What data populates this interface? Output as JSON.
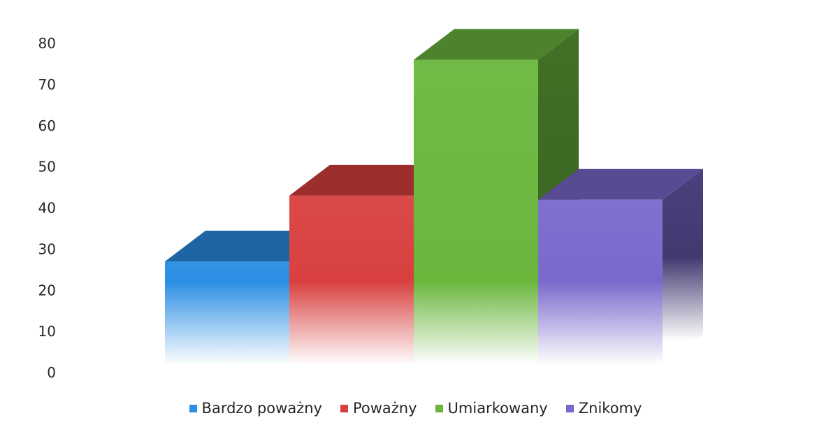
{
  "chart_data": {
    "type": "bar",
    "categories": [
      "Bardzo poważny",
      "Poważny",
      "Umiarkowany",
      "Znikomy"
    ],
    "values": [
      27,
      43,
      76,
      42
    ],
    "colors": [
      "#2a8ee3",
      "#d8403f",
      "#6ab63d",
      "#7a68cc"
    ],
    "title": "",
    "xlabel": "",
    "ylabel": "",
    "ylim": [
      0,
      80
    ],
    "yticks": [
      "0",
      "10",
      "20",
      "30",
      "40",
      "50",
      "60",
      "70",
      "80"
    ],
    "legend_position": "bottom",
    "style": "3d-bars-with-bottom-fade",
    "grid": false
  }
}
